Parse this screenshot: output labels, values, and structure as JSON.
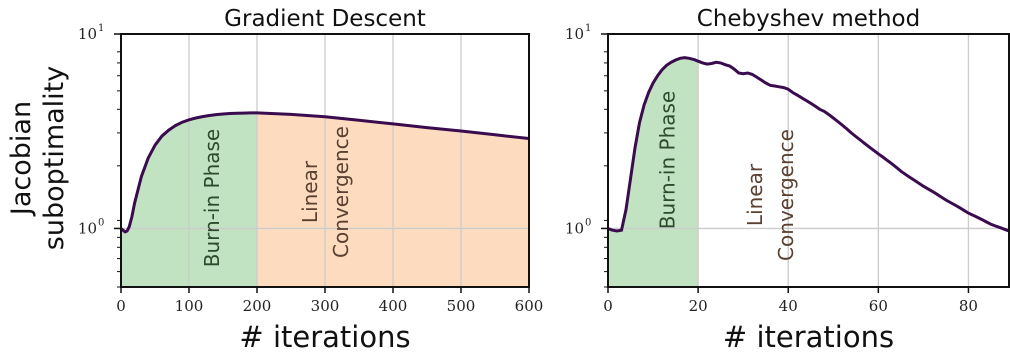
{
  "y_axis_label_line1": "Jacobian",
  "y_axis_label_line2": "suboptimality",
  "colors": {
    "curve": "#3b0b4f",
    "burn_in_fill": "#c2e3c1",
    "linear_fill": "#fddbbe",
    "burn_in_text": "#2e4a2e",
    "linear_text": "#5a4030"
  },
  "chart_data": [
    {
      "type": "line",
      "title": "Gradient Descent",
      "xlabel": "# iterations",
      "ylabel": "Jacobian suboptimality",
      "yscale": "log",
      "xlim": [
        0,
        600
      ],
      "ylim": [
        0.5,
        10
      ],
      "xticks": [
        0,
        100,
        200,
        300,
        400,
        500,
        600
      ],
      "xtick_labels": [
        "0",
        "100",
        "200",
        "300",
        "400",
        "500",
        "600"
      ],
      "yticks": [
        1,
        10
      ],
      "ytick_labels": [
        {
          "base": "10",
          "exp": "0"
        },
        {
          "base": "10",
          "exp": "1"
        }
      ],
      "grid": true,
      "regions": [
        {
          "label": "Burn-in Phase",
          "x_start": 0,
          "x_end": 200,
          "fill": "green"
        },
        {
          "label_lines": [
            "Linear",
            "Convergence"
          ],
          "x_start": 200,
          "x_end": 600,
          "fill": "orange"
        }
      ],
      "series": [
        {
          "x": [
            0,
            3,
            6,
            9,
            12,
            16,
            20,
            30,
            40,
            50,
            60,
            70,
            80,
            90,
            100,
            110,
            120,
            130,
            140,
            150,
            160,
            170,
            180,
            190,
            200,
            250,
            300,
            350,
            400,
            450,
            500,
            550,
            600
          ],
          "values": [
            1.0,
            0.98,
            0.96,
            0.97,
            1.02,
            1.15,
            1.35,
            1.85,
            2.3,
            2.68,
            2.98,
            3.2,
            3.38,
            3.52,
            3.62,
            3.7,
            3.76,
            3.81,
            3.85,
            3.88,
            3.9,
            3.91,
            3.92,
            3.93,
            3.93,
            3.86,
            3.75,
            3.6,
            3.45,
            3.3,
            3.17,
            3.03,
            2.9
          ]
        }
      ]
    },
    {
      "type": "line",
      "title": "Chebyshev method",
      "xlabel": "# iterations",
      "ylabel": "",
      "yscale": "log",
      "xlim": [
        0,
        89
      ],
      "ylim": [
        0.5,
        10
      ],
      "xticks": [
        0,
        20,
        40,
        60,
        80
      ],
      "xtick_labels": [
        "0",
        "20",
        "40",
        "60",
        "80"
      ],
      "yticks": [
        1,
        10
      ],
      "ytick_labels": [
        {
          "base": "10",
          "exp": "0"
        },
        {
          "base": "10",
          "exp": "1"
        }
      ],
      "grid": true,
      "regions": [
        {
          "label": "Burn-in Phase",
          "x_start": 0,
          "x_end": 20,
          "fill": "green"
        },
        {
          "label_lines": [
            "Linear",
            "Convergence"
          ],
          "x_start": 20,
          "x_end": 89,
          "fill": "none"
        }
      ],
      "series": [
        {
          "x": [
            0,
            1,
            2,
            3,
            4,
            5,
            6,
            7,
            8,
            9,
            10,
            11,
            12,
            13,
            14,
            15,
            16,
            17,
            18,
            19,
            20,
            21,
            22,
            23,
            24,
            25,
            26,
            27,
            28,
            29,
            30,
            31,
            32,
            33,
            34,
            35,
            36,
            37,
            38,
            39,
            40,
            41,
            42,
            43,
            44,
            45,
            46,
            47,
            48,
            49,
            50,
            51,
            52,
            53,
            54,
            55,
            56,
            57,
            58,
            59,
            60,
            61,
            62,
            63,
            64,
            65,
            66,
            67,
            68,
            69,
            70,
            71,
            72,
            73,
            74,
            75,
            76,
            77,
            78,
            79,
            80,
            81,
            82,
            83,
            84,
            85,
            86,
            87,
            88,
            89
          ],
          "values": [
            1.0,
            0.98,
            0.97,
            0.98,
            1.25,
            1.8,
            2.6,
            3.5,
            4.3,
            5.0,
            5.6,
            6.1,
            6.55,
            6.9,
            7.15,
            7.35,
            7.5,
            7.55,
            7.5,
            7.4,
            7.25,
            7.1,
            7.0,
            7.05,
            7.15,
            7.1,
            6.95,
            6.85,
            6.6,
            6.3,
            6.25,
            6.3,
            6.2,
            6.0,
            5.8,
            5.6,
            5.45,
            5.4,
            5.35,
            5.3,
            5.2,
            5.0,
            4.85,
            4.7,
            4.55,
            4.4,
            4.25,
            4.1,
            4.0,
            3.85,
            3.7,
            3.55,
            3.4,
            3.25,
            3.1,
            2.97,
            2.85,
            2.73,
            2.62,
            2.52,
            2.42,
            2.33,
            2.24,
            2.15,
            2.06,
            1.97,
            1.9,
            1.83,
            1.77,
            1.71,
            1.65,
            1.6,
            1.55,
            1.5,
            1.45,
            1.4,
            1.36,
            1.32,
            1.28,
            1.24,
            1.2,
            1.17,
            1.14,
            1.11,
            1.08,
            1.05,
            1.03,
            1.01,
            0.99,
            0.97
          ]
        }
      ]
    }
  ]
}
